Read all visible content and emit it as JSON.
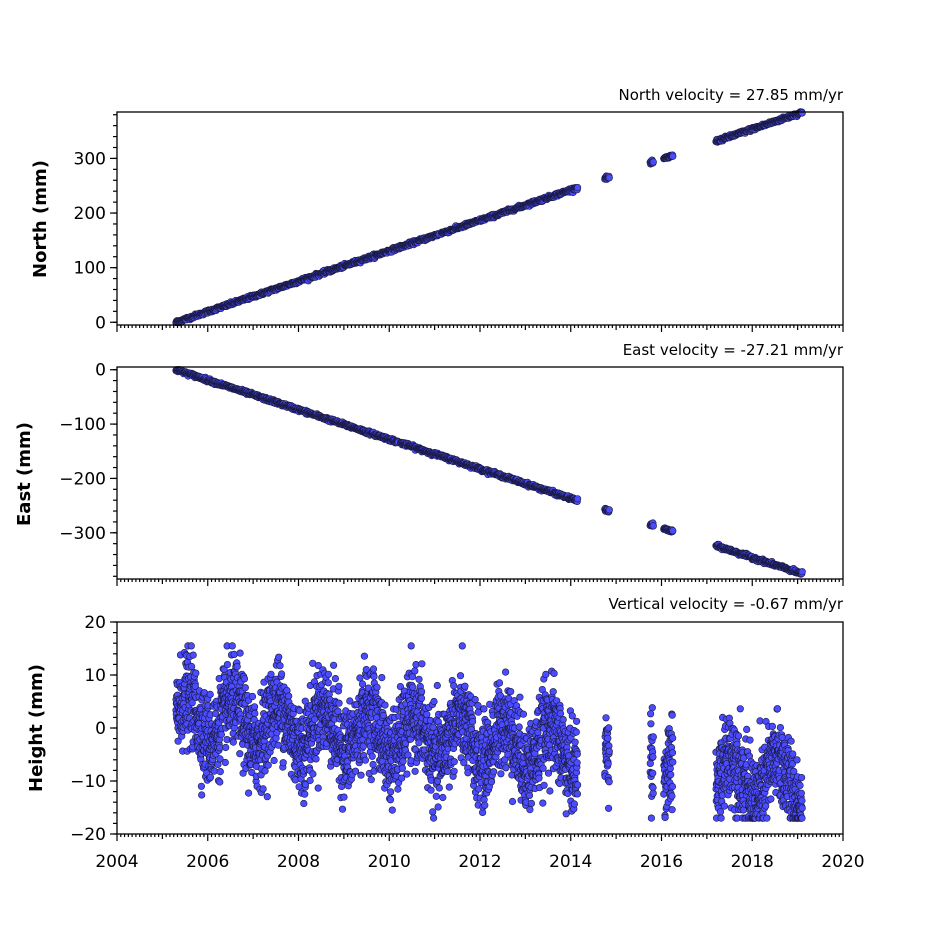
{
  "chart_data": [
    {
      "type": "scatter",
      "title": "North velocity = 27.85 mm/yr",
      "ylabel": "North (mm)",
      "xlim": [
        2004,
        2020
      ],
      "ylim": [
        -5,
        385
      ],
      "yticks": [
        0,
        100,
        200,
        300
      ],
      "ytick_labels": [
        "0",
        "100",
        "200",
        "300"
      ],
      "velocity_mm_per_yr": 27.85,
      "data_span": [
        2005.3,
        2019.1
      ],
      "segments": [
        [
          2005.3,
          2011.1
        ],
        [
          2011.15,
          2014.15
        ],
        [
          2014.75,
          2014.85
        ],
        [
          2015.75,
          2015.82
        ],
        [
          2016.05,
          2016.25
        ],
        [
          2017.2,
          2019.1
        ]
      ],
      "series": [
        {
          "name": "North",
          "color": "#4b4bff"
        }
      ]
    },
    {
      "type": "scatter",
      "title": "East velocity = -27.21 mm/yr",
      "ylabel": "East (mm)",
      "xlim": [
        2004,
        2020
      ],
      "ylim": [
        -385,
        5
      ],
      "yticks": [
        0,
        -100,
        -200,
        -300
      ],
      "ytick_labels": [
        "0",
        "−100",
        "−200",
        "−300"
      ],
      "velocity_mm_per_yr": -27.21,
      "data_span": [
        2005.3,
        2019.1
      ],
      "segments": [
        [
          2005.3,
          2010.2
        ],
        [
          2010.25,
          2014.15
        ],
        [
          2014.75,
          2014.85
        ],
        [
          2015.75,
          2015.82
        ],
        [
          2016.05,
          2016.25
        ],
        [
          2017.2,
          2019.1
        ]
      ],
      "series": [
        {
          "name": "East",
          "color": "#4b4bff"
        }
      ]
    },
    {
      "type": "scatter",
      "title": "Vertical velocity = -0.67 mm/yr",
      "ylabel": "Height (mm)",
      "xlabel": "",
      "xlim": [
        2004,
        2020
      ],
      "ylim": [
        -20,
        20
      ],
      "yticks": [
        -20,
        -10,
        0,
        10,
        20
      ],
      "ytick_labels": [
        "−20",
        "−10",
        "0",
        "10",
        "20"
      ],
      "xticks": [
        2004,
        2006,
        2008,
        2010,
        2012,
        2014,
        2016,
        2018,
        2020
      ],
      "xtick_labels": [
        "2004",
        "2006",
        "2008",
        "2010",
        "2012",
        "2014",
        "2016",
        "2018",
        "2020"
      ],
      "velocity_mm_per_yr": -0.67,
      "noise_range": [
        -17,
        15.5
      ],
      "segments": [
        [
          2005.3,
          2014.15
        ],
        [
          2014.75,
          2014.85
        ],
        [
          2015.75,
          2015.82
        ],
        [
          2016.05,
          2016.25
        ],
        [
          2017.2,
          2019.1
        ]
      ],
      "series": [
        {
          "name": "Height",
          "color": "#4b4bff"
        }
      ]
    }
  ]
}
